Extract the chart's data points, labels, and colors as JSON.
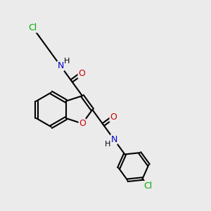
{
  "bg_color": "#ebebeb",
  "bond_color": "#000000",
  "bond_width": 1.5,
  "atom_colors": {
    "C": "#000000",
    "N": "#0000cc",
    "O": "#cc0000",
    "Cl": "#00aa00",
    "H": "#000000"
  },
  "font_size": 9
}
